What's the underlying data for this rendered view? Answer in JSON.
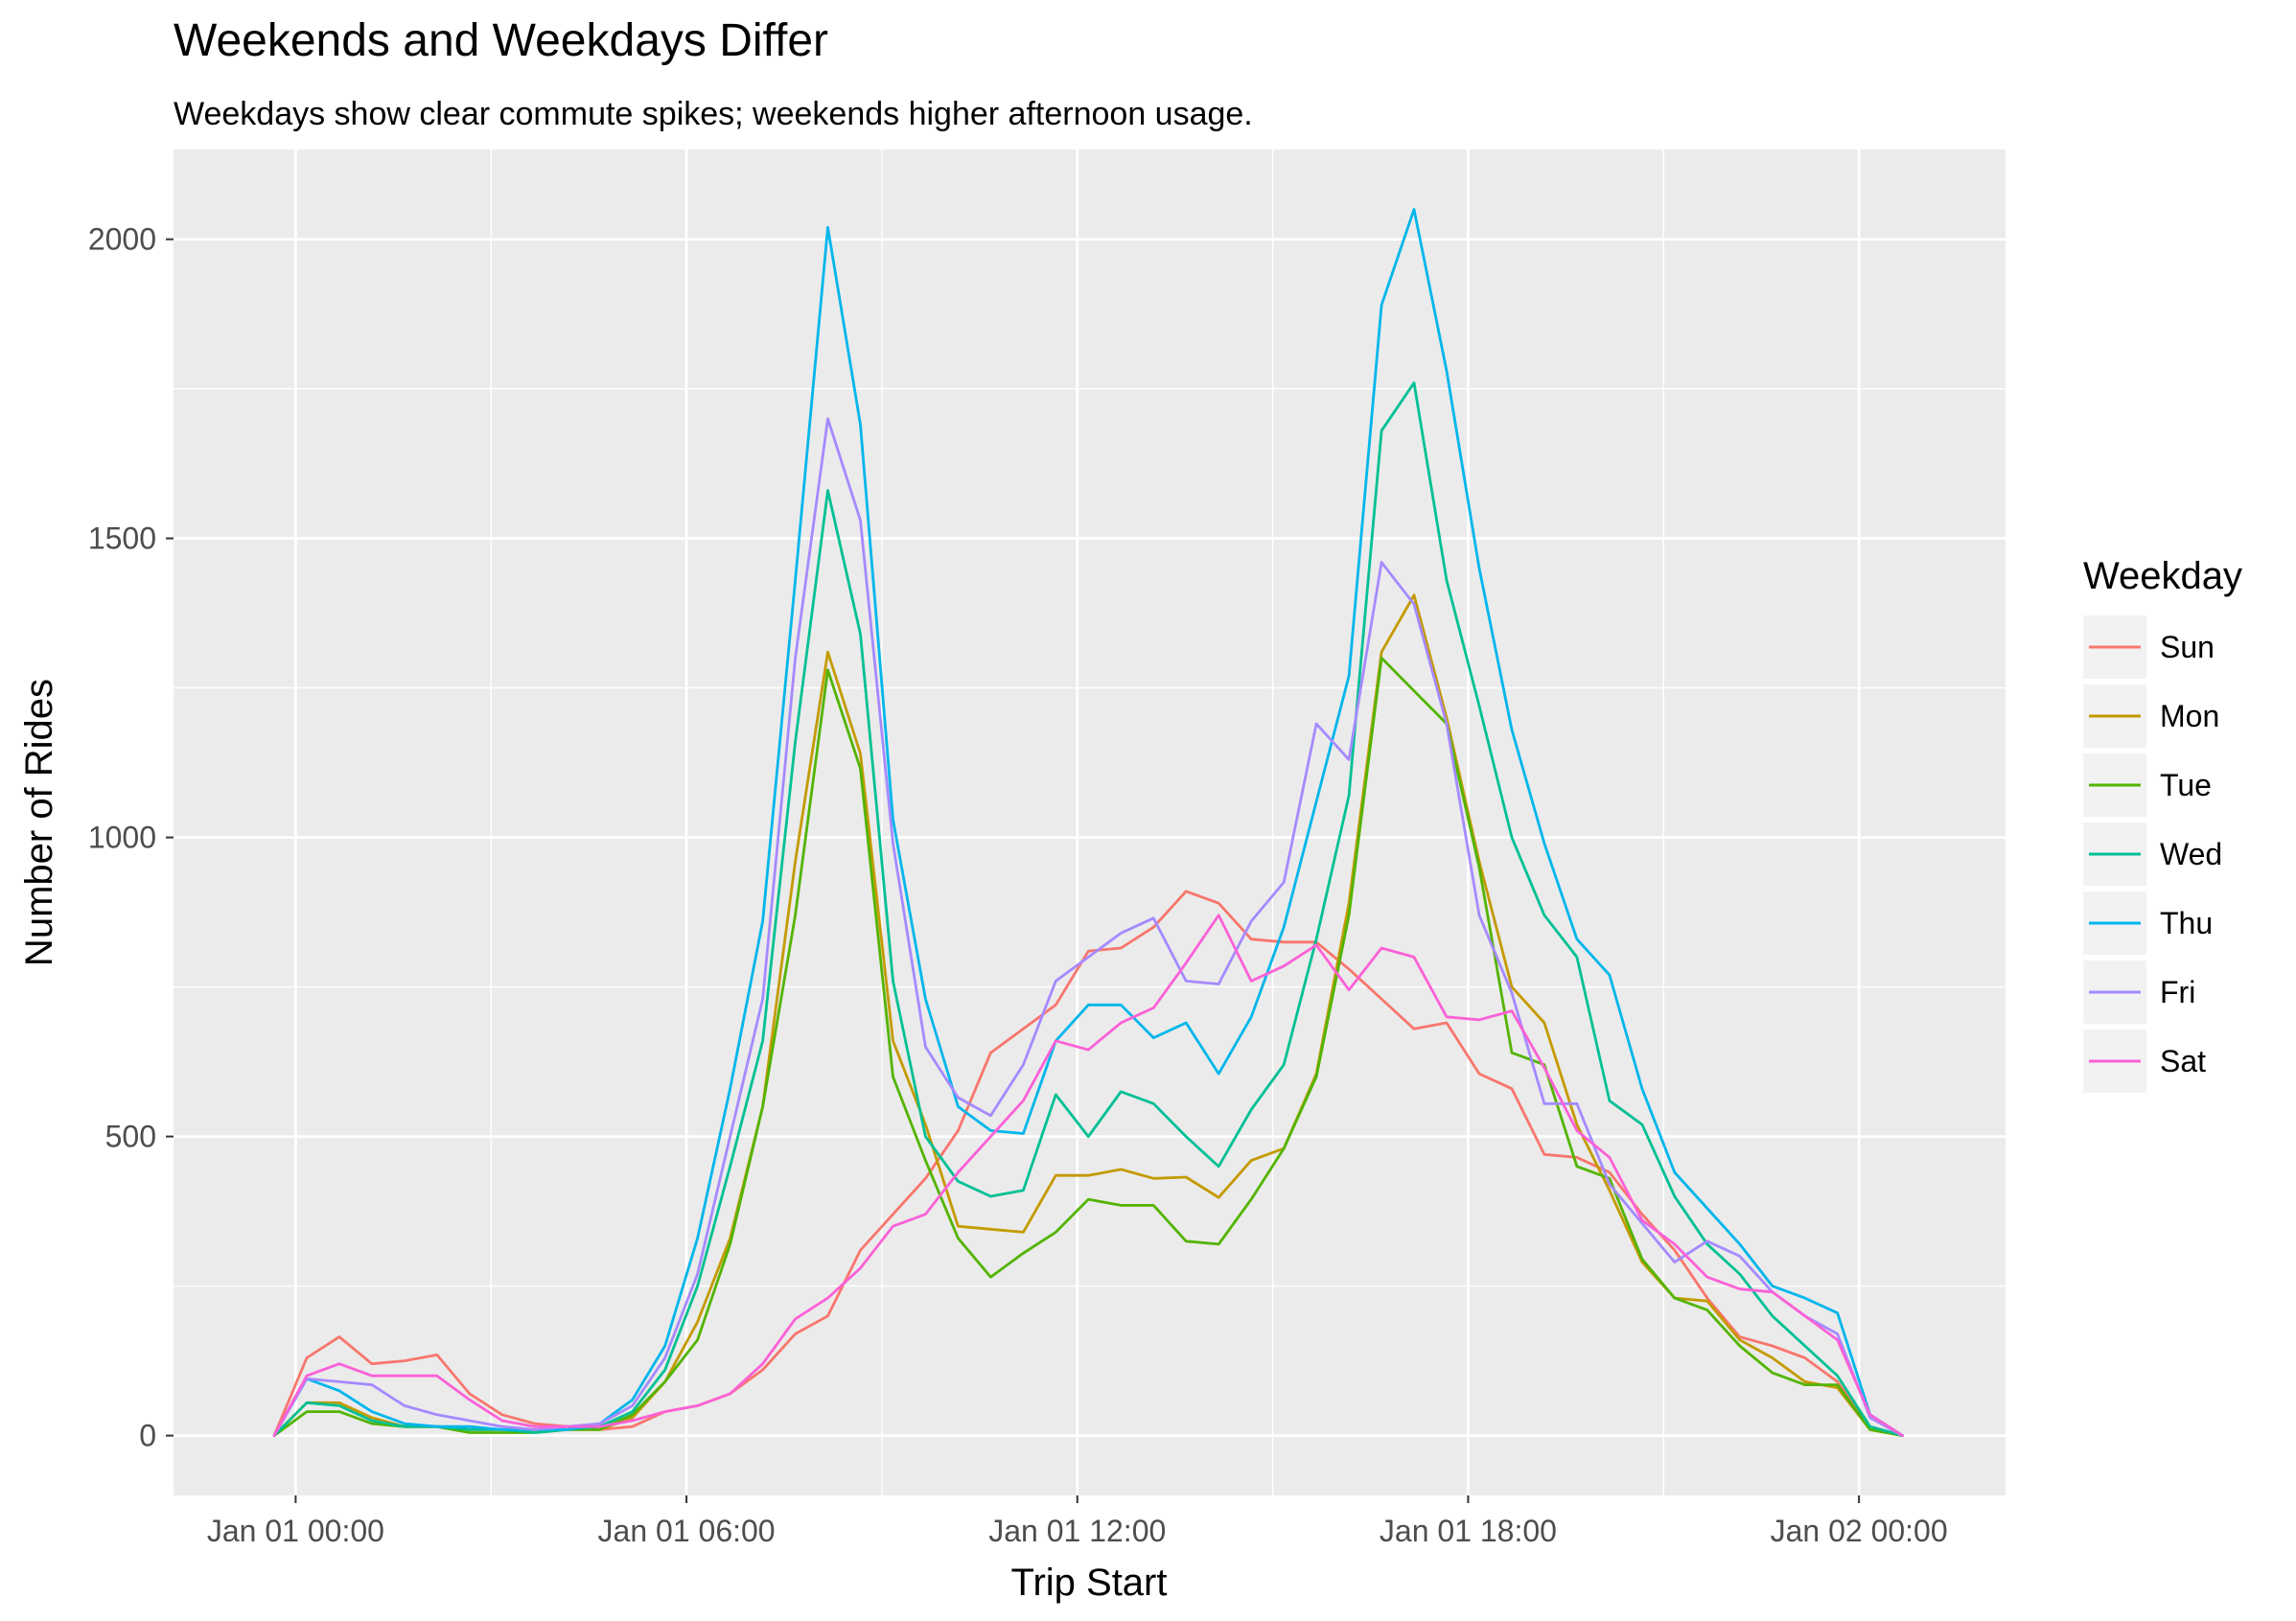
{
  "chart_data": {
    "type": "line",
    "title": "Weekends and Weekdays Differ",
    "subtitle": "Weekdays show clear commute spikes; weekends higher afternoon usage.",
    "xlabel": "Trip Start",
    "ylabel": "Number of Rides",
    "x_tick_labels": [
      "Jan 01 00:00",
      "Jan 01 06:00",
      "Jan 01 12:00",
      "Jan 01 18:00",
      "Jan 02 00:00"
    ],
    "y_tick_labels": [
      "0",
      "500",
      "1000",
      "1500",
      "2000"
    ],
    "x_unit": "hours since Jan 01 00:00",
    "xlim": [
      -1.875,
      26.25
    ],
    "ylim": [
      -100,
      2150
    ],
    "legend_title": "Weekday",
    "legend_position": "right",
    "grid": true,
    "x": [
      -0.33,
      0.17,
      0.67,
      1.17,
      1.67,
      2.17,
      2.67,
      3.17,
      3.67,
      4.17,
      4.67,
      5.17,
      5.67,
      6.17,
      6.67,
      7.17,
      7.67,
      8.17,
      8.67,
      9.17,
      9.67,
      10.17,
      10.67,
      11.17,
      11.67,
      12.17,
      12.67,
      13.17,
      13.67,
      14.17,
      14.67,
      15.17,
      15.67,
      16.17,
      16.67,
      17.17,
      17.67,
      18.17,
      18.67,
      19.17,
      19.67,
      20.17,
      20.67,
      21.17,
      21.67,
      22.17,
      22.67,
      23.17,
      23.67,
      24.17,
      24.67
    ],
    "series": [
      {
        "name": "Sun",
        "color": "#F8766D",
        "values": [
          0,
          130,
          165,
          120,
          125,
          135,
          70,
          35,
          20,
          15,
          10,
          15,
          40,
          50,
          70,
          110,
          170,
          200,
          310,
          370,
          430,
          510,
          640,
          680,
          720,
          810,
          815,
          850,
          910,
          890,
          830,
          825,
          825,
          780,
          730,
          680,
          690,
          605,
          580,
          470,
          465,
          440,
          370,
          310,
          230,
          165,
          150,
          130,
          90,
          15,
          0
        ]
      },
      {
        "name": "Mon",
        "color": "#C49A00",
        "values": [
          0,
          55,
          55,
          30,
          15,
          15,
          10,
          10,
          10,
          10,
          10,
          30,
          90,
          190,
          330,
          550,
          960,
          1310,
          1140,
          660,
          520,
          350,
          345,
          340,
          435,
          435,
          445,
          430,
          432,
          398,
          460,
          480,
          605,
          890,
          1310,
          1405,
          1200,
          960,
          750,
          690,
          520,
          410,
          290,
          230,
          225,
          160,
          130,
          90,
          80,
          10,
          0
        ]
      },
      {
        "name": "Tue",
        "color": "#53B400",
        "values": [
          0,
          40,
          40,
          20,
          15,
          15,
          5,
          5,
          5,
          10,
          10,
          35,
          90,
          160,
          320,
          550,
          870,
          1280,
          1115,
          600,
          460,
          330,
          265,
          305,
          340,
          395,
          385,
          385,
          325,
          320,
          395,
          480,
          600,
          870,
          1300,
          1245,
          1190,
          950,
          640,
          620,
          450,
          430,
          295,
          230,
          210,
          150,
          105,
          85,
          85,
          10,
          0
        ]
      },
      {
        "name": "Wed",
        "color": "#00C094",
        "values": [
          0,
          55,
          50,
          25,
          15,
          15,
          10,
          10,
          5,
          10,
          15,
          40,
          110,
          250,
          450,
          660,
          1160,
          1580,
          1340,
          760,
          500,
          425,
          400,
          410,
          570,
          500,
          575,
          555,
          500,
          450,
          545,
          620,
          830,
          1070,
          1680,
          1760,
          1430,
          1220,
          1000,
          870,
          800,
          560,
          520,
          400,
          320,
          270,
          200,
          150,
          100,
          15,
          0
        ]
      },
      {
        "name": "Thu",
        "color": "#00B6EB",
        "values": [
          0,
          95,
          75,
          40,
          20,
          15,
          15,
          10,
          10,
          10,
          20,
          60,
          150,
          330,
          580,
          860,
          1430,
          2020,
          1690,
          1030,
          730,
          550,
          510,
          505,
          660,
          720,
          720,
          665,
          690,
          605,
          700,
          850,
          1060,
          1270,
          1890,
          2050,
          1780,
          1450,
          1180,
          990,
          830,
          770,
          580,
          440,
          380,
          320,
          250,
          230,
          205,
          35,
          0
        ]
      },
      {
        "name": "Fri",
        "color": "#A58AFF",
        "values": [
          0,
          95,
          90,
          85,
          50,
          35,
          25,
          15,
          10,
          15,
          20,
          50,
          130,
          270,
          500,
          730,
          1300,
          1700,
          1530,
          990,
          650,
          565,
          535,
          620,
          760,
          800,
          840,
          865,
          760,
          755,
          860,
          925,
          1190,
          1130,
          1460,
          1390,
          1190,
          870,
          740,
          555,
          555,
          420,
          355,
          290,
          325,
          300,
          240,
          200,
          170,
          30,
          0
        ]
      },
      {
        "name": "Sat",
        "color": "#FB61D7",
        "values": [
          0,
          100,
          120,
          100,
          100,
          100,
          60,
          25,
          15,
          15,
          15,
          25,
          40,
          50,
          70,
          120,
          195,
          230,
          280,
          350,
          370,
          440,
          500,
          560,
          660,
          645,
          690,
          715,
          790,
          870,
          760,
          785,
          820,
          745,
          815,
          800,
          700,
          695,
          710,
          615,
          510,
          465,
          360,
          320,
          265,
          245,
          240,
          200,
          160,
          35,
          0
        ]
      }
    ]
  }
}
